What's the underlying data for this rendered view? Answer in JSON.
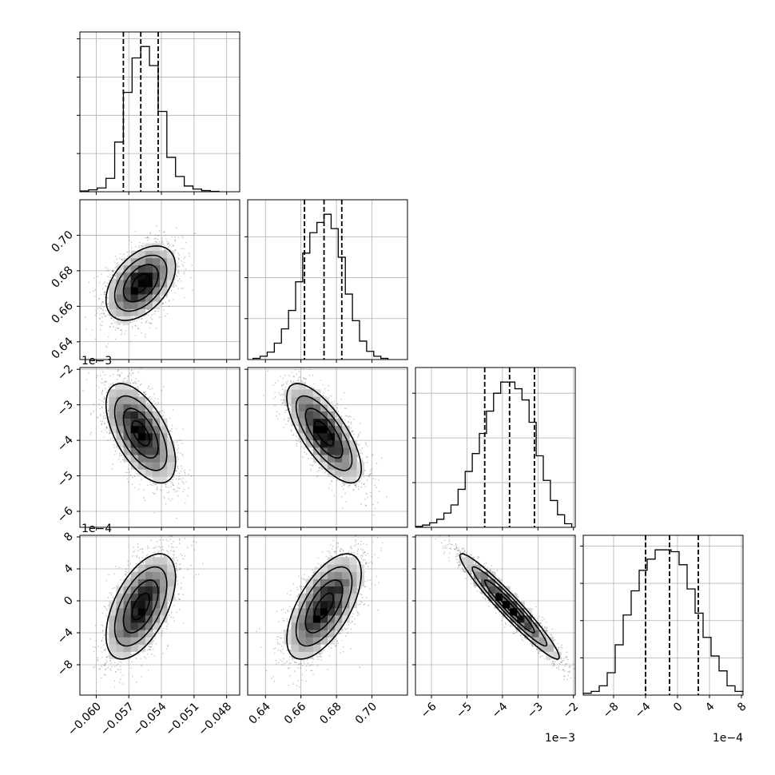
{
  "chart_data": {
    "type": "corner",
    "grid": true,
    "levels": [
      0.118,
      0.393,
      0.675,
      0.864
    ],
    "marginals": [
      {
        "type": "histogram",
        "x_range": [
          -0.0615,
          -0.0468
        ],
        "x_ticks": [
          -0.06,
          -0.057,
          -0.054,
          -0.051,
          -0.048
        ],
        "x_tick_labels": [
          "−0.060",
          "−0.057",
          "−0.054",
          "−0.051",
          "−0.048"
        ],
        "x_offset_text": "",
        "bins": [
          -0.0615,
          -0.0607,
          -0.0599,
          -0.0591,
          -0.0583,
          -0.0575,
          -0.0567,
          -0.0559,
          -0.0551,
          -0.0543,
          -0.0535,
          -0.0527,
          -0.0519,
          -0.0511,
          -0.0503,
          -0.0495,
          -0.0487
        ],
        "counts": [
          2,
          5,
          10,
          35,
          130,
          260,
          350,
          380,
          330,
          210,
          90,
          40,
          15,
          7,
          3,
          1
        ],
        "quantiles": [
          -0.0575,
          -0.0559,
          -0.0543
        ]
      },
      {
        "type": "histogram",
        "x_range": [
          0.63,
          0.72
        ],
        "x_ticks": [
          0.64,
          0.66,
          0.68,
          0.7
        ],
        "x_tick_labels": [
          "0.64",
          "0.66",
          "0.68",
          "0.70"
        ],
        "x_offset_text": "",
        "bins": [
          0.633,
          0.637,
          0.641,
          0.645,
          0.649,
          0.653,
          0.657,
          0.661,
          0.665,
          0.669,
          0.673,
          0.677,
          0.681,
          0.685,
          0.689,
          0.693,
          0.697,
          0.701,
          0.705,
          0.709
        ],
        "counts": [
          3,
          8,
          18,
          40,
          75,
          120,
          190,
          260,
          310,
          335,
          355,
          320,
          250,
          160,
          95,
          45,
          20,
          8,
          3
        ],
        "quantiles": [
          0.662,
          0.673,
          0.683
        ]
      },
      {
        "type": "histogram",
        "x_range": [
          -6.45,
          -1.95
        ],
        "x_ticks": [
          -6,
          -5,
          -4,
          -3,
          -2
        ],
        "x_tick_labels": [
          "−6",
          "−5",
          "−4",
          "−3",
          "−2"
        ],
        "x_offset_text": "1e−3",
        "bins": [
          -6.45,
          -6.25,
          -6.05,
          -5.85,
          -5.65,
          -5.45,
          -5.25,
          -5.05,
          -4.85,
          -4.65,
          -4.45,
          -4.25,
          -4.05,
          -3.85,
          -3.65,
          -3.45,
          -3.25,
          -3.05,
          -2.85,
          -2.65,
          -2.45,
          -2.25,
          -2.05
        ],
        "counts": [
          2,
          5,
          10,
          18,
          32,
          50,
          85,
          125,
          165,
          210,
          260,
          300,
          325,
          325,
          310,
          285,
          235,
          160,
          105,
          60,
          28,
          8
        ],
        "quantiles": [
          -4.5,
          -3.8,
          -3.1
        ]
      },
      {
        "type": "histogram",
        "x_range": [
          -11.8,
          8.2
        ],
        "x_ticks": [
          -8,
          -4,
          0,
          4,
          8
        ],
        "x_tick_labels": [
          "−8",
          "−4",
          "0",
          "4",
          "8"
        ],
        "x_offset_text": "1e−4",
        "bins": [
          -11.8,
          -10.8,
          -9.8,
          -8.8,
          -7.8,
          -6.8,
          -5.8,
          -4.8,
          -3.8,
          -2.8,
          -1.8,
          -0.8,
          0.2,
          1.2,
          2.2,
          3.2,
          4.2,
          5.2,
          6.2,
          7.2,
          8.2
        ],
        "counts": [
          5,
          10,
          25,
          60,
          135,
          215,
          280,
          335,
          365,
          390,
          390,
          385,
          350,
          285,
          220,
          155,
          105,
          65,
          25,
          10
        ],
        "quantiles": [
          -4.0,
          -1.0,
          2.6
        ]
      }
    ],
    "pairs": [
      {
        "row": 1,
        "col": 0,
        "x_mean": -0.0559,
        "y_mean": 0.673,
        "x_sd": 0.0016,
        "y_sd": 0.0105,
        "rho": 0.45,
        "y_range": [
          0.63,
          0.72
        ],
        "y_ticks": [
          0.64,
          0.66,
          0.68,
          0.7
        ],
        "y_tick_labels": [
          "0.64",
          "0.66",
          "0.68",
          "0.70"
        ],
        "y_offset_text": ""
      },
      {
        "row": 2,
        "col": 0,
        "x_mean": -0.0559,
        "y_mean": -3.8,
        "x_sd": 0.0016,
        "y_sd": 0.7,
        "rho": -0.58,
        "y_range": [
          -6.45,
          -1.95
        ],
        "y_ticks": [
          -6,
          -5,
          -4,
          -3,
          -2
        ],
        "y_tick_labels": [
          "−6",
          "−5",
          "−4",
          "−3",
          "−2"
        ],
        "y_offset_text": "1e−3"
      },
      {
        "row": 2,
        "col": 1,
        "x_mean": 0.673,
        "y_mean": -3.8,
        "x_sd": 0.0105,
        "y_sd": 0.7,
        "rho": -0.72
      },
      {
        "row": 3,
        "col": 0,
        "x_mean": -0.0559,
        "y_mean": -0.7,
        "x_sd": 0.0016,
        "y_sd": 3.3,
        "rho": 0.55,
        "y_range": [
          -11.8,
          8.2
        ],
        "y_ticks": [
          -8,
          -4,
          0,
          4,
          8
        ],
        "y_tick_labels": [
          "−8",
          "−4",
          "0",
          "4",
          "8"
        ],
        "y_offset_text": "1e−4"
      },
      {
        "row": 3,
        "col": 1,
        "x_mean": 0.673,
        "y_mean": -0.7,
        "x_sd": 0.0105,
        "y_sd": 3.3,
        "rho": 0.62
      },
      {
        "row": 3,
        "col": 2,
        "x_mean": -3.8,
        "y_mean": -0.7,
        "x_sd": 0.7,
        "y_sd": 3.3,
        "rho": -0.96
      }
    ]
  }
}
